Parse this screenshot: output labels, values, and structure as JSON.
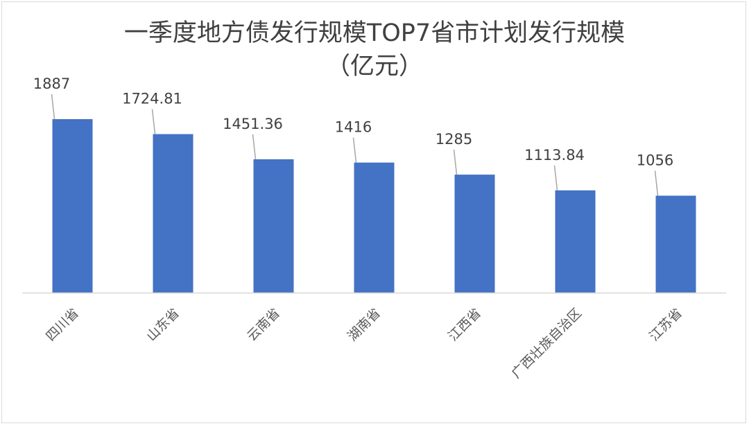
{
  "chart_data": {
    "type": "bar",
    "title_line1": "一季度地方债发行规模TOP7省市计划发行规模",
    "title_line2": "（亿元）",
    "categories": [
      "四川省",
      "山东省",
      "云南省",
      "湖南省",
      "江西省",
      "广西壮族自治区",
      "江苏省"
    ],
    "values": [
      1887,
      1724.81,
      1451.36,
      1416,
      1285,
      1113.84,
      1056
    ],
    "value_labels": [
      "1887",
      "1724.81",
      "1451.36",
      "1416",
      "1285",
      "1113.84",
      "1056"
    ],
    "ylim": [
      0,
      1887
    ],
    "grid": false,
    "legend": "none",
    "bar_color": "#4472c4"
  }
}
